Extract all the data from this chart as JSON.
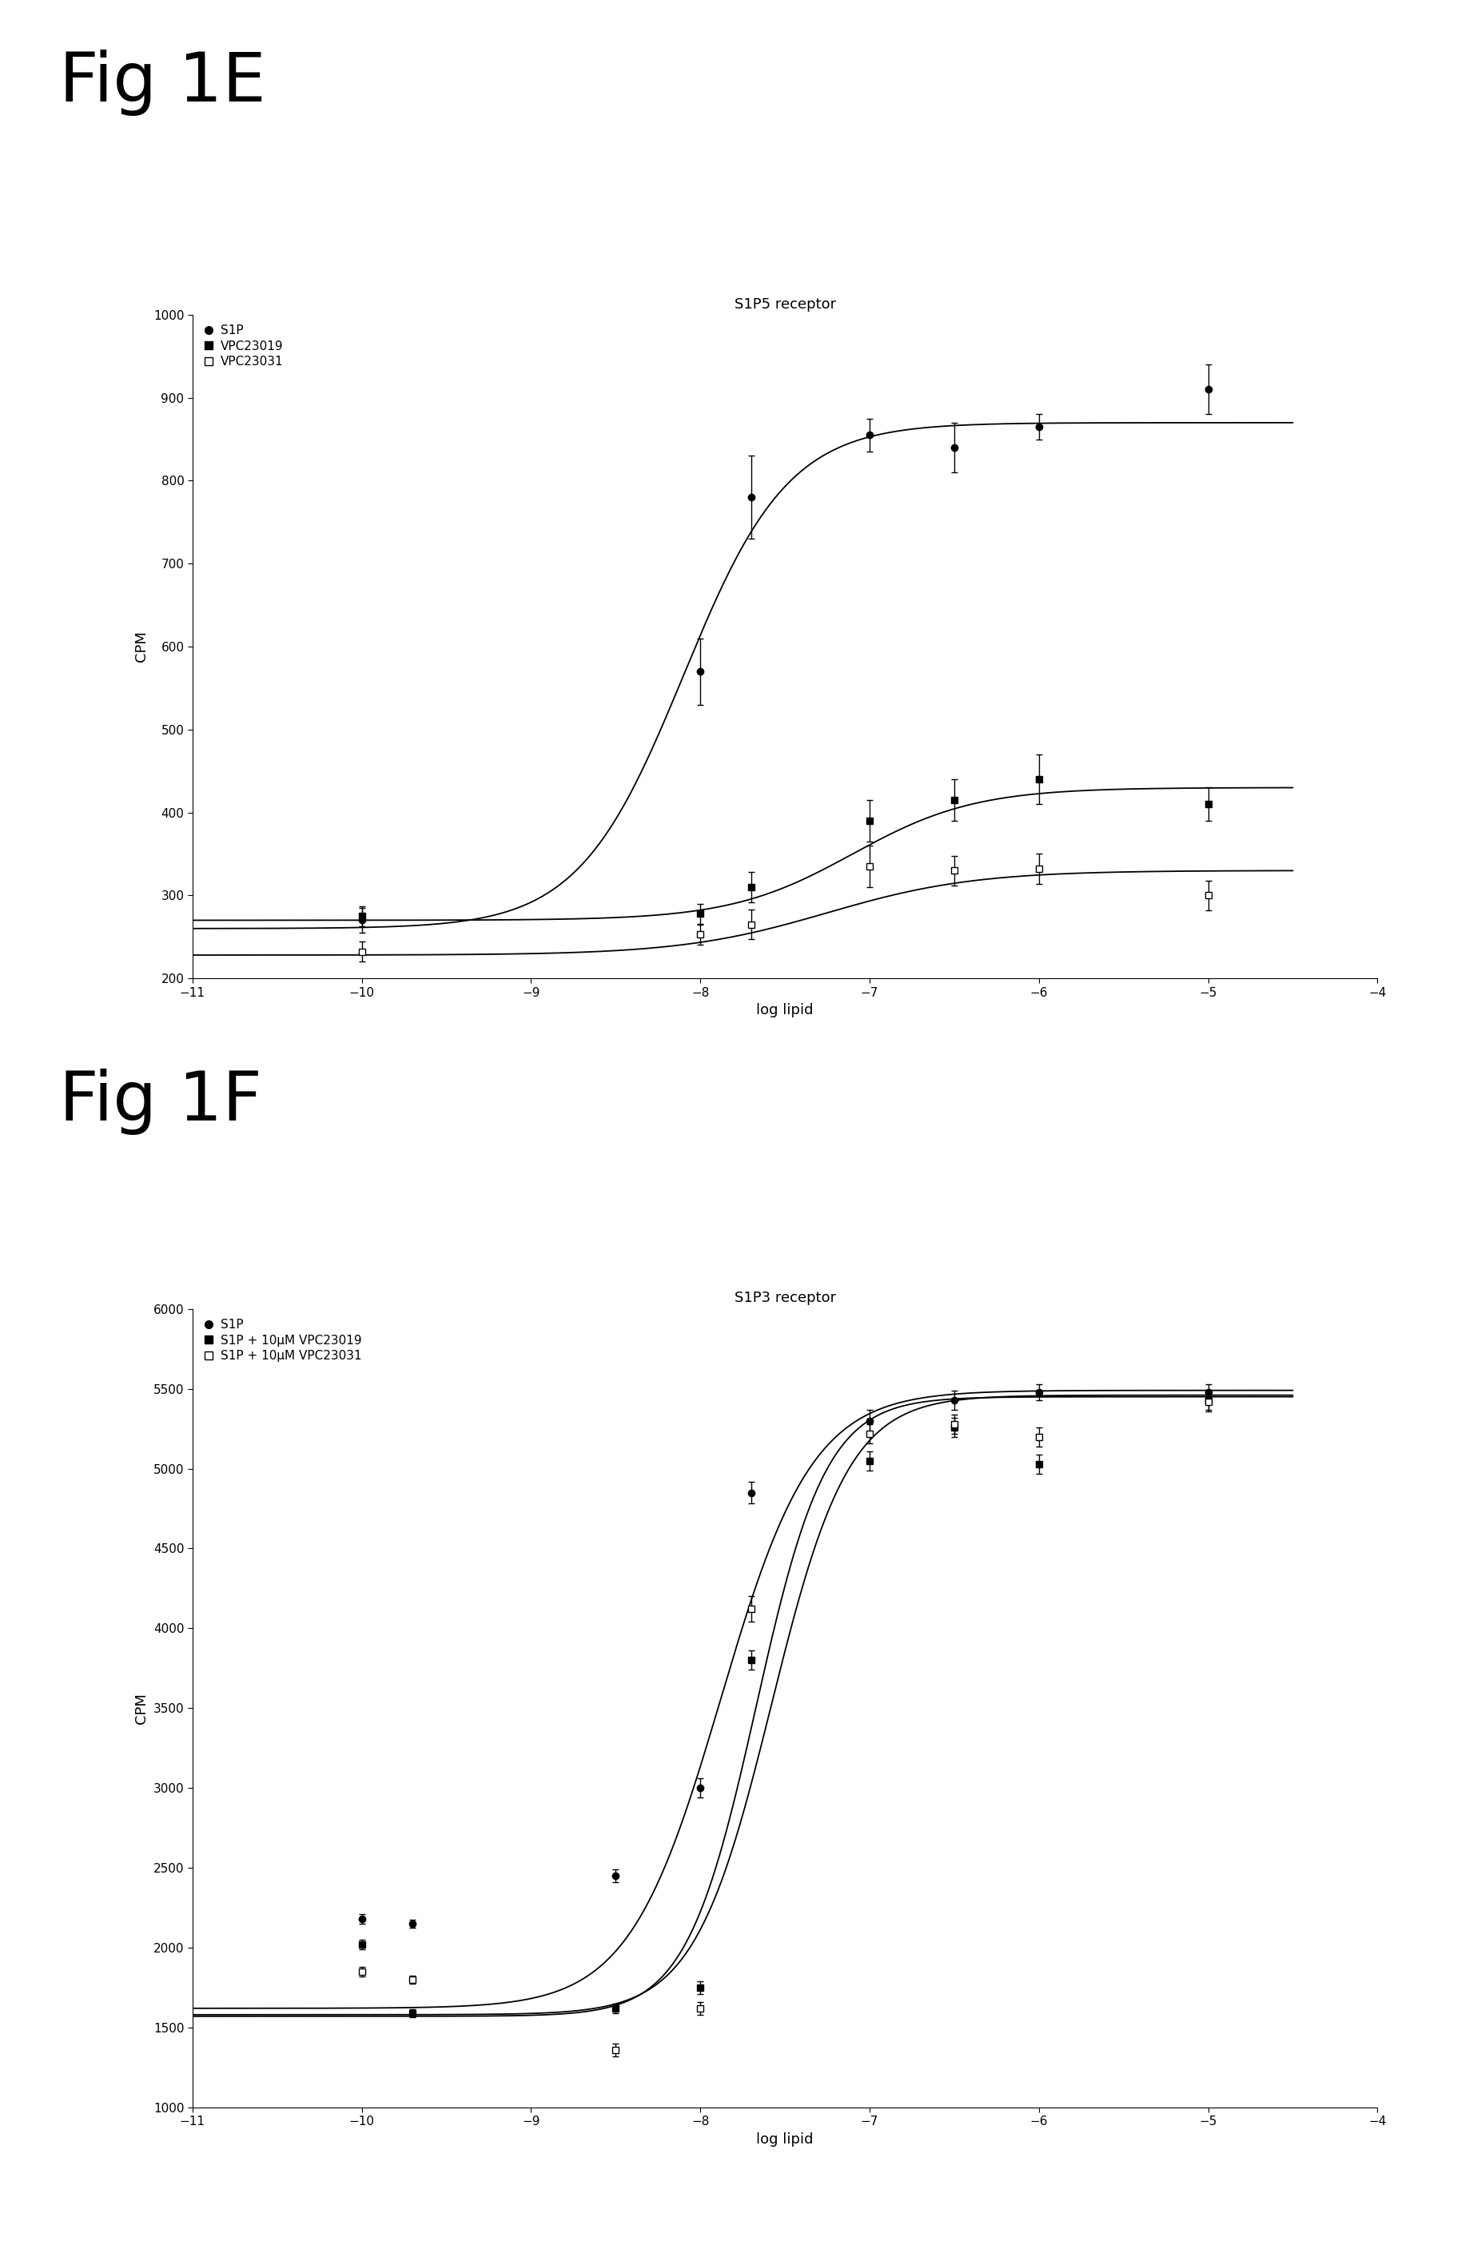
{
  "panel_E": {
    "title": "S1P5 receptor",
    "xlabel": "log lipid",
    "ylabel": "CPM",
    "ylim": [
      200,
      1000
    ],
    "xlim": [
      -11,
      -4
    ],
    "yticks": [
      200,
      300,
      400,
      500,
      600,
      700,
      800,
      900,
      1000
    ],
    "xticks": [
      -11,
      -10,
      -9,
      -8,
      -7,
      -6,
      -5,
      -4
    ],
    "legend_labels": [
      "S1P",
      "VPC23019",
      "VPC23031"
    ],
    "series": [
      {
        "name": "S1P",
        "marker": "o",
        "filled": true,
        "x": [
          -10,
          -8,
          -7.7,
          -7,
          -6.5,
          -6,
          -5
        ],
        "y": [
          270,
          570,
          780,
          855,
          840,
          865,
          910
        ],
        "yerr": [
          15,
          40,
          50,
          20,
          30,
          15,
          30
        ],
        "curve_params": {
          "bottom": 260,
          "top": 870,
          "ec50": -8.1,
          "hill": 1.4
        }
      },
      {
        "name": "VPC23019",
        "marker": "s",
        "filled": true,
        "x": [
          -10,
          -8,
          -7.7,
          -7,
          -6.5,
          -6,
          -5
        ],
        "y": [
          275,
          278,
          310,
          390,
          415,
          440,
          410
        ],
        "yerr": [
          12,
          12,
          18,
          25,
          25,
          30,
          20
        ],
        "curve_params": {
          "bottom": 270,
          "top": 430,
          "ec50": -7.1,
          "hill": 1.2
        }
      },
      {
        "name": "VPC23031",
        "marker": "s",
        "filled": false,
        "x": [
          -10,
          -8,
          -7.7,
          -7,
          -6.5,
          -6,
          -5
        ],
        "y": [
          232,
          253,
          265,
          335,
          330,
          332,
          300
        ],
        "yerr": [
          12,
          12,
          18,
          25,
          18,
          18,
          18
        ],
        "curve_params": {
          "bottom": 228,
          "top": 330,
          "ec50": -7.25,
          "hill": 1.0
        }
      }
    ]
  },
  "panel_F": {
    "title": "S1P3 receptor",
    "xlabel": "log lipid",
    "ylabel": "CPM",
    "ylim": [
      1000,
      6000
    ],
    "xlim": [
      -11,
      -4
    ],
    "yticks": [
      1000,
      1500,
      2000,
      2500,
      3000,
      3500,
      4000,
      4500,
      5000,
      5500,
      6000
    ],
    "xticks": [
      -11,
      -10,
      -9,
      -8,
      -7,
      -6,
      -5,
      -4
    ],
    "legend_labels": [
      "S1P",
      "S1P + 10μM VPC23019",
      "S1P + 10μM VPC23031"
    ],
    "series": [
      {
        "name": "S1P",
        "marker": "o",
        "filled": true,
        "x": [
          -10,
          -9.7,
          -8.5,
          -8,
          -7.7,
          -7,
          -6.5,
          -6,
          -5
        ],
        "y": [
          2180,
          2150,
          2450,
          3000,
          4850,
          5300,
          5430,
          5480,
          5480
        ],
        "yerr": [
          30,
          25,
          40,
          60,
          70,
          70,
          60,
          50,
          50
        ],
        "curve_params": {
          "bottom": 1620,
          "top": 5490,
          "ec50": -7.88,
          "hill": 1.6
        }
      },
      {
        "name": "VPC23019",
        "marker": "s",
        "filled": true,
        "x": [
          -10,
          -9.7,
          -8.5,
          -8,
          -7.7,
          -7,
          -6.5,
          -6,
          -5
        ],
        "y": [
          2020,
          1590,
          1620,
          1750,
          3800,
          5050,
          5260,
          5030,
          5430
        ],
        "yerr": [
          30,
          25,
          30,
          40,
          60,
          60,
          60,
          60,
          60
        ],
        "curve_params": {
          "bottom": 1580,
          "top": 5460,
          "ec50": -7.58,
          "hill": 1.9
        }
      },
      {
        "name": "VPC23031",
        "marker": "s",
        "filled": false,
        "x": [
          -10,
          -9.7,
          -8.5,
          -8,
          -7.7,
          -7,
          -6.5,
          -6,
          -5
        ],
        "y": [
          1850,
          1800,
          1360,
          1620,
          4120,
          5220,
          5280,
          5200,
          5420
        ],
        "yerr": [
          30,
          25,
          40,
          40,
          80,
          60,
          60,
          60,
          60
        ],
        "curve_params": {
          "bottom": 1570,
          "top": 5450,
          "ec50": -7.67,
          "hill": 2.1
        }
      }
    ]
  },
  "fig1E_label": "Fig 1E",
  "fig1F_label": "Fig 1F",
  "background_color": "#ffffff",
  "line_color": "#000000",
  "marker_color": "#000000"
}
